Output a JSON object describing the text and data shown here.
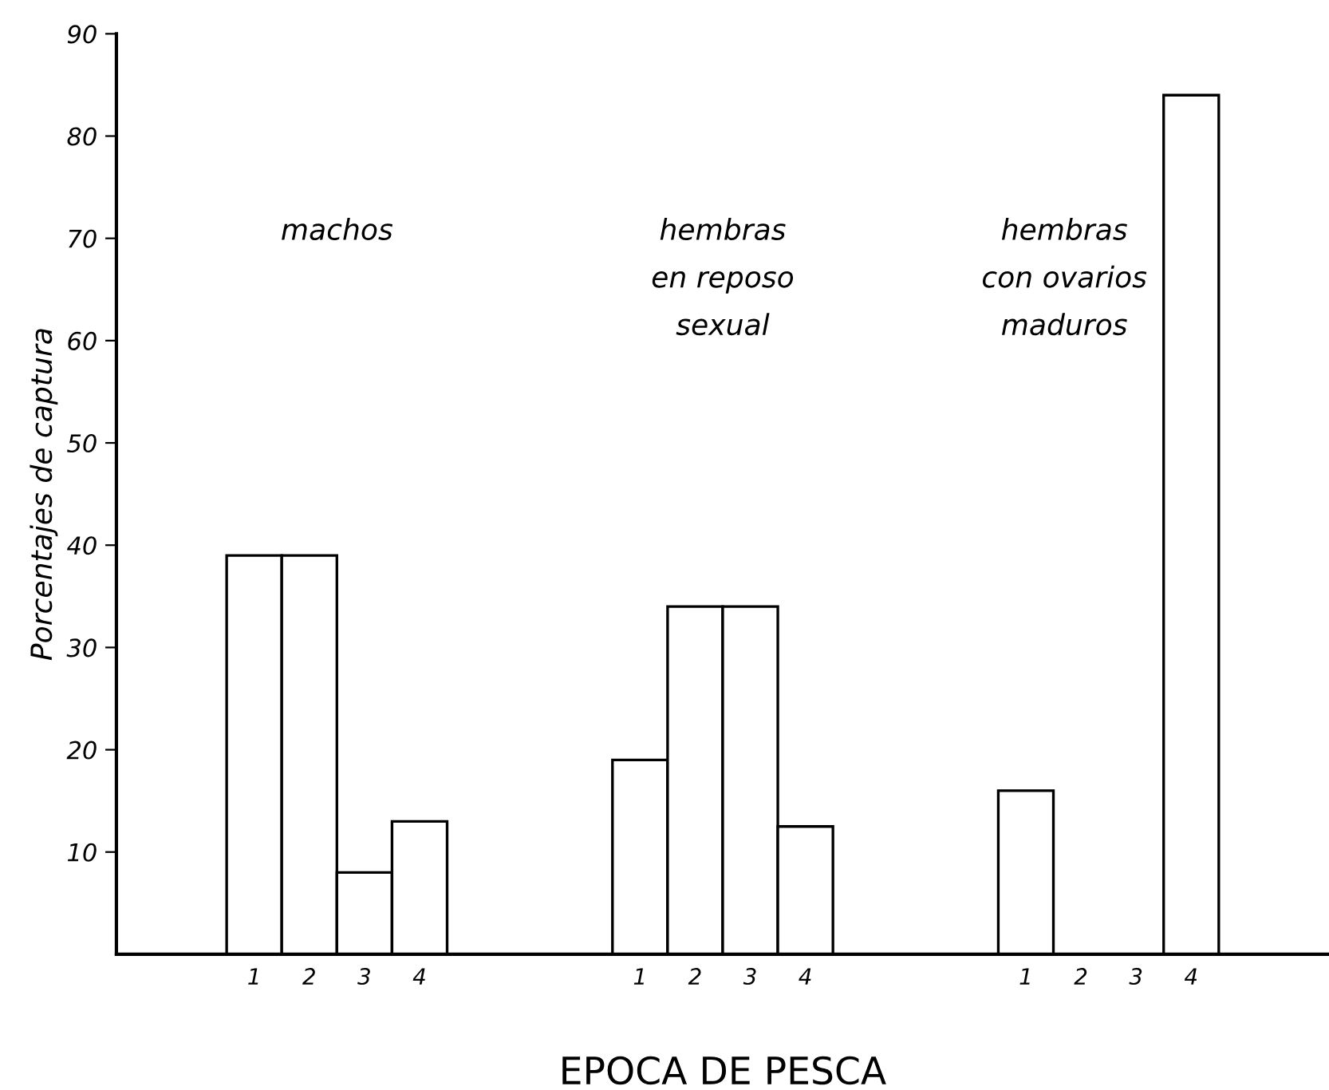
{
  "chart_data": {
    "type": "bar",
    "xlabel": "EPOCA DE PESCA",
    "ylabel": "Porcentajes de captura",
    "categories": [
      null,
      null,
      "1",
      "2",
      "3",
      "4",
      null,
      null,
      null,
      "1",
      "2",
      "3",
      "4",
      null,
      null,
      null,
      "1",
      "2",
      "3",
      "4",
      null,
      null
    ],
    "values": [
      null,
      null,
      39,
      39,
      8,
      13,
      null,
      null,
      null,
      19,
      34,
      34,
      12.5,
      null,
      null,
      null,
      16,
      0,
      0,
      84,
      null,
      null
    ],
    "color": "#ffffff",
    "ylim": [
      0,
      90
    ],
    "yticks": [
      10,
      20,
      30,
      40,
      50,
      60,
      70,
      80,
      90
    ],
    "grid": false,
    "legend": false,
    "annotations": [
      "machos",
      "hembras\nen reposo\nsexual",
      "hembras\ncon ovarios\nmaduros"
    ]
  }
}
